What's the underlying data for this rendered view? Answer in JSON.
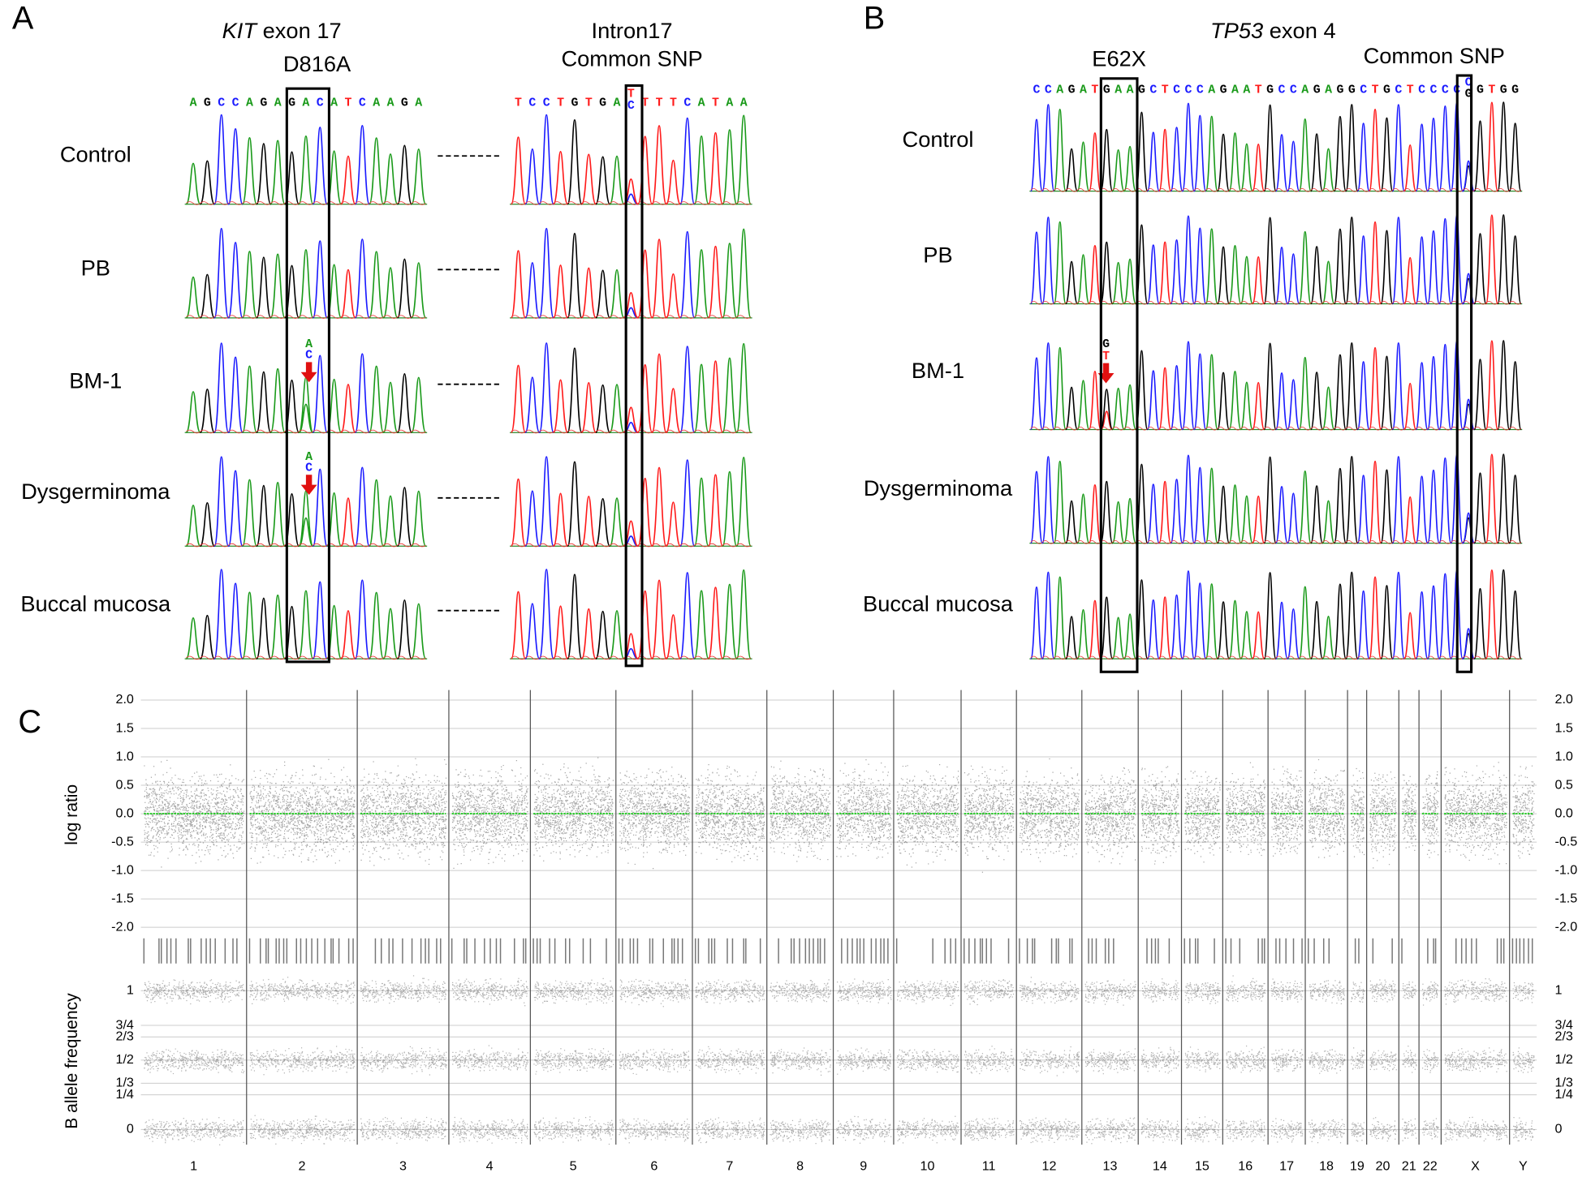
{
  "panel_a": {
    "label": "A",
    "gene": "KIT",
    "region": " exon 17",
    "mutation": "D816A",
    "snp_region": "Intron17",
    "snp_title": "Common SNP",
    "sequence": [
      "A",
      "G",
      "C",
      "C",
      "A",
      "G",
      "A",
      "G",
      "A",
      "C",
      "A",
      "T",
      "C",
      "A",
      "A",
      "G",
      "A"
    ],
    "mutation_alleles": [
      "A",
      "C"
    ],
    "snp_sequence_before": [
      "T",
      "C",
      "C",
      "T",
      "G",
      "T",
      "G",
      "A"
    ],
    "snp_alleles": [
      "T",
      "C"
    ],
    "snp_sequence_after": [
      "T",
      "T",
      "T",
      "C",
      "A",
      "T",
      "A",
      "A"
    ],
    "samples": [
      "Control",
      "PB",
      "BM-1",
      "Dysgerminoma",
      "Buccal mucosa"
    ]
  },
  "panel_b": {
    "label": "B",
    "gene": "TP53",
    "region": " exon 4",
    "mutation": "E62X",
    "snp_title": "Common SNP",
    "sequence": [
      "C",
      "C",
      "A",
      "G",
      "A",
      "T",
      "G",
      "A",
      "A",
      "G",
      "C",
      "T",
      "C",
      "C",
      "C",
      "A",
      "G",
      "A",
      "A",
      "T",
      "G",
      "C",
      "C",
      "A",
      "G",
      "A",
      "G",
      "G",
      "C",
      "T",
      "G",
      "C",
      "T",
      "C",
      "C",
      "C",
      "C"
    ],
    "mutation_alleles": [
      "G",
      "T"
    ],
    "snp_alleles": [
      "C",
      "G"
    ],
    "sequence_after": [
      "G",
      "T",
      "G",
      "G"
    ],
    "samples": [
      "Control",
      "PB",
      "BM-1",
      "Dysgerminoma",
      "Buccal mucosa"
    ]
  },
  "panel_c": {
    "label": "C",
    "log_ratio_label": "log ratio",
    "baf_label": "B allele frequency",
    "log_ratio_ticks": [
      {
        "value": 2,
        "label": "2.0"
      },
      1.5,
      {
        "value": 1,
        "label": "1.0"
      },
      0.5,
      {
        "value": 0,
        "label": "0.0"
      },
      -0.5,
      {
        "value": -1,
        "label": "-1.0"
      },
      -1.5,
      {
        "value": -2,
        "label": "-2.0"
      }
    ],
    "baf_ticks": [
      1,
      {
        "value": 0.75,
        "label": "3/4"
      },
      {
        "value": 0.6667,
        "label": "2/3"
      },
      {
        "value": 0.5,
        "label": "1/2"
      },
      {
        "value": 0.3333,
        "label": "1/3"
      },
      {
        "value": 0.25,
        "label": "1/4"
      },
      0
    ],
    "chromosomes": [
      "1",
      "2",
      "3",
      "4",
      "5",
      "6",
      "7",
      "8",
      "9",
      "10",
      "11",
      "12",
      "13",
      "14",
      "15",
      "16",
      "17",
      "18",
      "19",
      "20",
      "21",
      "22",
      "X",
      "Y"
    ]
  }
}
